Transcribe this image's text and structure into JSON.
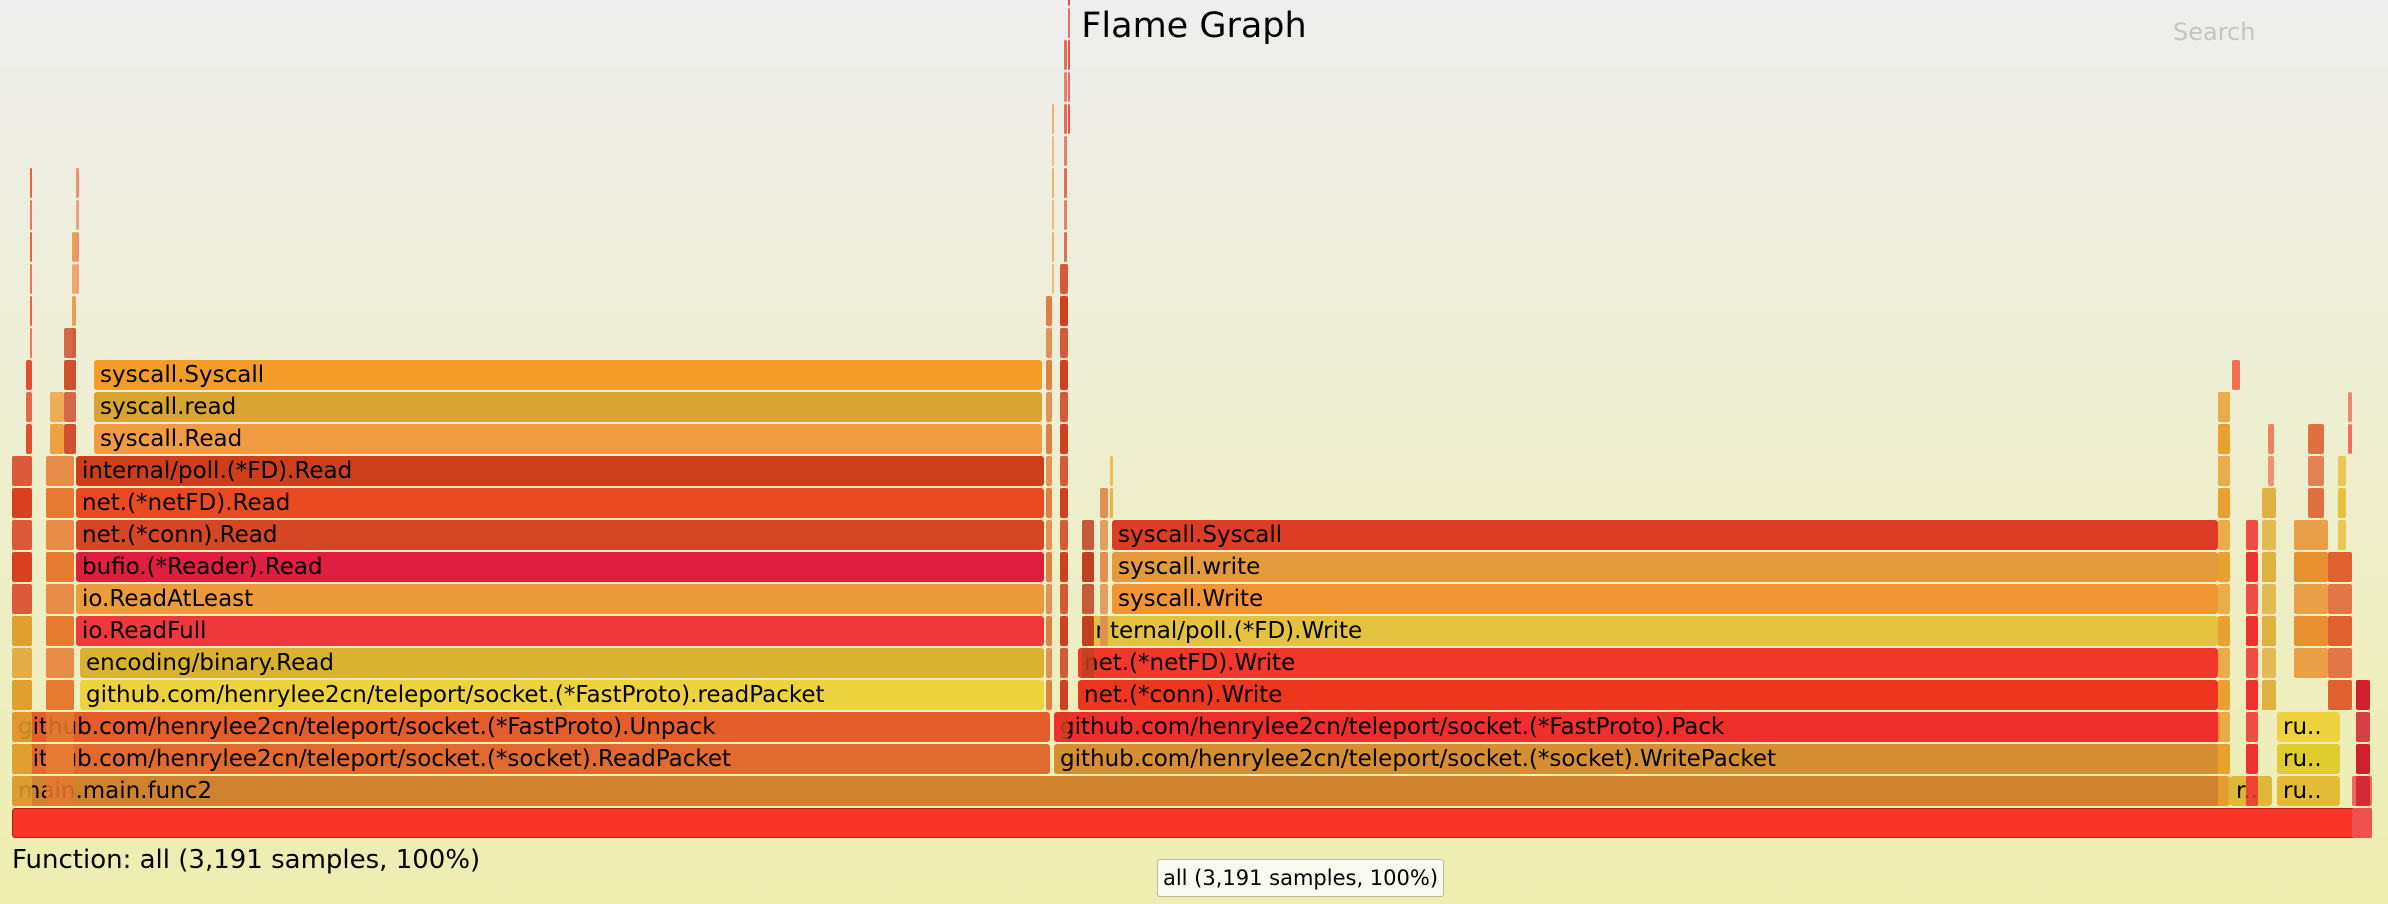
{
  "header": {
    "title": "Flame Graph",
    "search_label": "Search"
  },
  "status": {
    "text": "Function: all (3,191 samples, 100%)"
  },
  "tooltip": {
    "text": "all (3,191 samples, 100%)"
  },
  "flamegraph": {
    "total_samples": 3191,
    "frames": [
      {
        "label": "",
        "name": "all",
        "color": "#f83527"
      },
      {
        "label": "main.main.func2",
        "color": "#d0832e"
      },
      {
        "label": "github.com/henrylee2cn/teleport/socket.(*socket).ReadPacket",
        "color": "#e06a30"
      },
      {
        "label": "github.com/henrylee2cn/teleport/socket.(*FastProto).Unpack",
        "color": "#e55d2b"
      },
      {
        "label": "github.com/henrylee2cn/teleport/socket.(*FastProto).readPacket",
        "color": "#edd43e"
      },
      {
        "label": "encoding/binary.Read",
        "color": "#d9b22f"
      },
      {
        "label": "io.ReadFull",
        "color": "#f0393c"
      },
      {
        "label": "io.ReadAtLeast",
        "color": "#eb9b3c"
      },
      {
        "label": "bufio.(*Reader).Read",
        "color": "#df1e40"
      },
      {
        "label": "net.(*conn).Read",
        "color": "#d54624"
      },
      {
        "label": "net.(*netFD).Read",
        "color": "#ea4a21"
      },
      {
        "label": "internal/poll.(*FD).Read",
        "color": "#cd3e1a"
      },
      {
        "label": "syscall.Read",
        "color": "#f19b42"
      },
      {
        "label": "syscall.read",
        "color": "#d8a532"
      },
      {
        "label": "syscall.Syscall",
        "color": "#f49c28"
      },
      {
        "label": "github.com/henrylee2cn/teleport/socket.(*socket).WritePacket",
        "color": "#d58e31"
      },
      {
        "label": "github.com/henrylee2cn/teleport/socket.(*FastProto).Pack",
        "color": "#ef2f2b"
      },
      {
        "label": "net.(*conn).Write",
        "color": "#ed361e"
      },
      {
        "label": "net.(*netFD).Write",
        "color": "#f0382b"
      },
      {
        "label": "internal/poll.(*FD).Write",
        "color": "#e2c23e"
      },
      {
        "label": "syscall.Write",
        "color": "#f09434"
      },
      {
        "label": "syscall.write",
        "color": "#e39a3c"
      },
      {
        "label": "syscall.Syscall",
        "color": "#de3d25"
      },
      {
        "label": "r..",
        "color": "#dcb836"
      },
      {
        "label": "ru..",
        "color": "#e3bb36"
      },
      {
        "label": "ru..",
        "color": "#dfcd2f"
      },
      {
        "label": "ru..",
        "color": "#efd33e"
      },
      {
        "label": "ru..",
        "color": "#f0c845"
      }
    ]
  }
}
